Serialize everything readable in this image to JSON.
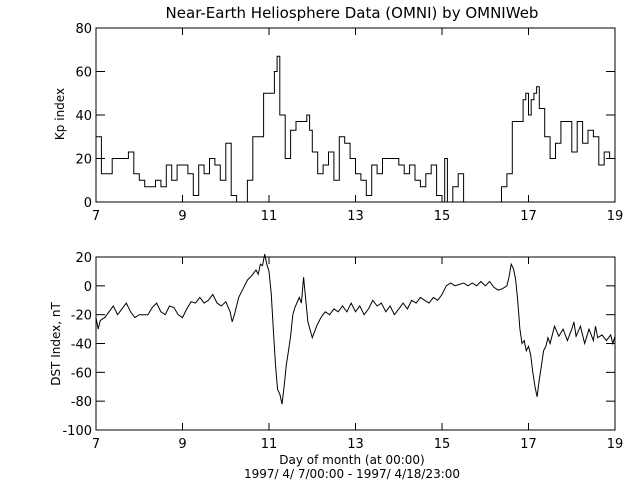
{
  "chart_data": {
    "title": "Near-Earth Heliosphere Data (OMNI) by OMNIWeb",
    "xlabel": "Day of month (at 00:00)",
    "date_range": "1997/ 4/ 7/00:00 - 1997/ 4/18/23:00",
    "panels": [
      {
        "type": "line",
        "step": true,
        "ylabel": "Kp index",
        "xlim": [
          7,
          19
        ],
        "ylim": [
          0,
          80
        ],
        "xticks": [
          7,
          9,
          11,
          13,
          15,
          17,
          19
        ],
        "yticks": [
          0,
          20,
          40,
          60,
          80
        ],
        "points": [
          [
            7.0,
            30
          ],
          [
            7.125,
            30
          ],
          [
            7.125,
            13
          ],
          [
            7.375,
            13
          ],
          [
            7.375,
            20
          ],
          [
            7.75,
            20
          ],
          [
            7.75,
            23
          ],
          [
            7.875,
            23
          ],
          [
            7.875,
            13
          ],
          [
            8.0,
            13
          ],
          [
            8.0,
            10
          ],
          [
            8.125,
            10
          ],
          [
            8.125,
            7
          ],
          [
            8.375,
            7
          ],
          [
            8.375,
            10
          ],
          [
            8.5,
            10
          ],
          [
            8.5,
            7
          ],
          [
            8.625,
            7
          ],
          [
            8.625,
            17
          ],
          [
            8.75,
            17
          ],
          [
            8.75,
            10
          ],
          [
            8.875,
            10
          ],
          [
            8.875,
            17
          ],
          [
            9.125,
            17
          ],
          [
            9.125,
            13
          ],
          [
            9.25,
            13
          ],
          [
            9.25,
            3
          ],
          [
            9.375,
            3
          ],
          [
            9.375,
            17
          ],
          [
            9.5,
            17
          ],
          [
            9.5,
            13
          ],
          [
            9.625,
            13
          ],
          [
            9.625,
            20
          ],
          [
            9.75,
            20
          ],
          [
            9.75,
            17
          ],
          [
            9.875,
            17
          ],
          [
            9.875,
            10
          ],
          [
            10.0,
            10
          ],
          [
            10.0,
            27
          ],
          [
            10.125,
            27
          ],
          [
            10.125,
            3
          ],
          [
            10.25,
            3
          ],
          [
            10.25,
            0
          ],
          [
            10.375,
            0
          ],
          [
            null,
            null
          ],
          [
            10.5,
            0
          ],
          [
            10.5,
            10
          ],
          [
            10.625,
            10
          ],
          [
            10.625,
            30
          ],
          [
            10.875,
            30
          ],
          [
            10.875,
            50
          ],
          [
            11.125,
            50
          ],
          [
            11.125,
            60
          ],
          [
            11.188,
            60
          ],
          [
            11.188,
            67
          ],
          [
            11.25,
            67
          ],
          [
            11.25,
            40
          ],
          [
            11.375,
            40
          ],
          [
            11.375,
            20
          ],
          [
            11.5,
            20
          ],
          [
            11.5,
            33
          ],
          [
            11.625,
            33
          ],
          [
            11.625,
            37
          ],
          [
            11.875,
            37
          ],
          [
            11.875,
            40
          ],
          [
            11.938,
            40
          ],
          [
            11.938,
            33
          ],
          [
            12.0,
            33
          ],
          [
            12.0,
            23
          ],
          [
            12.125,
            23
          ],
          [
            12.125,
            13
          ],
          [
            12.25,
            13
          ],
          [
            12.25,
            17
          ],
          [
            12.375,
            17
          ],
          [
            12.375,
            23
          ],
          [
            12.5,
            23
          ],
          [
            12.5,
            10
          ],
          [
            12.625,
            10
          ],
          [
            12.625,
            30
          ],
          [
            12.75,
            30
          ],
          [
            12.75,
            27
          ],
          [
            12.875,
            27
          ],
          [
            12.875,
            20
          ],
          [
            13.0,
            20
          ],
          [
            13.0,
            13
          ],
          [
            13.125,
            13
          ],
          [
            13.125,
            10
          ],
          [
            13.25,
            10
          ],
          [
            13.25,
            3
          ],
          [
            13.375,
            3
          ],
          [
            13.375,
            17
          ],
          [
            13.5,
            17
          ],
          [
            13.5,
            13
          ],
          [
            13.625,
            13
          ],
          [
            13.625,
            20
          ],
          [
            14.0,
            20
          ],
          [
            14.0,
            17
          ],
          [
            14.125,
            17
          ],
          [
            14.125,
            13
          ],
          [
            14.25,
            13
          ],
          [
            14.25,
            17
          ],
          [
            14.375,
            17
          ],
          [
            14.375,
            10
          ],
          [
            14.5,
            10
          ],
          [
            14.5,
            7
          ],
          [
            14.625,
            7
          ],
          [
            14.625,
            13
          ],
          [
            14.75,
            13
          ],
          [
            14.75,
            17
          ],
          [
            14.875,
            17
          ],
          [
            14.875,
            3
          ],
          [
            15.0,
            3
          ],
          [
            15.0,
            0
          ],
          [
            15.063,
            0
          ],
          [
            15.063,
            20
          ],
          [
            15.125,
            20
          ],
          [
            15.125,
            0
          ],
          [
            15.25,
            0
          ],
          [
            15.25,
            7
          ],
          [
            15.375,
            7
          ],
          [
            15.375,
            13
          ],
          [
            15.5,
            13
          ],
          [
            15.5,
            0
          ],
          [
            null,
            null
          ],
          [
            16.375,
            0
          ],
          [
            16.375,
            7
          ],
          [
            16.5,
            7
          ],
          [
            16.5,
            13
          ],
          [
            16.625,
            13
          ],
          [
            16.625,
            37
          ],
          [
            16.875,
            37
          ],
          [
            16.875,
            47
          ],
          [
            16.938,
            47
          ],
          [
            16.938,
            50
          ],
          [
            17.0,
            50
          ],
          [
            17.0,
            40
          ],
          [
            17.063,
            40
          ],
          [
            17.063,
            47
          ],
          [
            17.125,
            47
          ],
          [
            17.125,
            50
          ],
          [
            17.188,
            50
          ],
          [
            17.188,
            53
          ],
          [
            17.25,
            53
          ],
          [
            17.25,
            43
          ],
          [
            17.375,
            43
          ],
          [
            17.375,
            30
          ],
          [
            17.5,
            30
          ],
          [
            17.5,
            20
          ],
          [
            17.625,
            20
          ],
          [
            17.625,
            27
          ],
          [
            17.75,
            27
          ],
          [
            17.75,
            37
          ],
          [
            18.0,
            37
          ],
          [
            18.0,
            23
          ],
          [
            18.125,
            23
          ],
          [
            18.125,
            37
          ],
          [
            18.25,
            37
          ],
          [
            18.25,
            27
          ],
          [
            18.375,
            27
          ],
          [
            18.375,
            33
          ],
          [
            18.5,
            33
          ],
          [
            18.5,
            30
          ],
          [
            18.625,
            30
          ],
          [
            18.625,
            17
          ],
          [
            18.75,
            17
          ],
          [
            18.75,
            23
          ],
          [
            18.875,
            23
          ],
          [
            18.875,
            20
          ],
          [
            19.0,
            20
          ]
        ]
      },
      {
        "type": "line",
        "ylabel": "DST Index, nT",
        "xlim": [
          7,
          19
        ],
        "ylim": [
          -100,
          20
        ],
        "xticks": [
          7,
          9,
          11,
          13,
          15,
          17,
          19
        ],
        "yticks": [
          -100,
          -80,
          -60,
          -40,
          -20,
          0,
          20
        ],
        "points": [
          [
            7.0,
            -22
          ],
          [
            7.05,
            -30
          ],
          [
            7.1,
            -24
          ],
          [
            7.2,
            -22
          ],
          [
            7.3,
            -18
          ],
          [
            7.4,
            -14
          ],
          [
            7.5,
            -20
          ],
          [
            7.6,
            -16
          ],
          [
            7.7,
            -12
          ],
          [
            7.8,
            -18
          ],
          [
            7.9,
            -22
          ],
          [
            8.0,
            -20
          ],
          [
            8.2,
            -20
          ],
          [
            8.3,
            -15
          ],
          [
            8.4,
            -12
          ],
          [
            8.5,
            -18
          ],
          [
            8.6,
            -20
          ],
          [
            8.7,
            -14
          ],
          [
            8.8,
            -15
          ],
          [
            8.9,
            -20
          ],
          [
            9.0,
            -22
          ],
          [
            9.1,
            -16
          ],
          [
            9.2,
            -11
          ],
          [
            9.3,
            -12
          ],
          [
            9.4,
            -8
          ],
          [
            9.5,
            -12
          ],
          [
            9.6,
            -10
          ],
          [
            9.7,
            -6
          ],
          [
            9.8,
            -12
          ],
          [
            9.9,
            -14
          ],
          [
            10.0,
            -11
          ],
          [
            10.1,
            -18
          ],
          [
            10.15,
            -25
          ],
          [
            10.2,
            -20
          ],
          [
            10.3,
            -8
          ],
          [
            10.4,
            -2
          ],
          [
            10.5,
            4
          ],
          [
            10.6,
            7
          ],
          [
            10.7,
            11
          ],
          [
            10.75,
            8
          ],
          [
            10.8,
            15
          ],
          [
            10.85,
            14
          ],
          [
            10.9,
            22
          ],
          [
            10.95,
            15
          ],
          [
            11.0,
            10
          ],
          [
            11.05,
            -5
          ],
          [
            11.1,
            -30
          ],
          [
            11.15,
            -55
          ],
          [
            11.2,
            -72
          ],
          [
            11.25,
            -75
          ],
          [
            11.3,
            -82
          ],
          [
            11.35,
            -70
          ],
          [
            11.4,
            -55
          ],
          [
            11.45,
            -45
          ],
          [
            11.5,
            -35
          ],
          [
            11.55,
            -20
          ],
          [
            11.6,
            -15
          ],
          [
            11.7,
            -8
          ],
          [
            11.75,
            -12
          ],
          [
            11.8,
            6
          ],
          [
            11.85,
            -10
          ],
          [
            11.9,
            -25
          ],
          [
            12.0,
            -36
          ],
          [
            12.1,
            -28
          ],
          [
            12.2,
            -22
          ],
          [
            12.3,
            -18
          ],
          [
            12.4,
            -20
          ],
          [
            12.5,
            -16
          ],
          [
            12.6,
            -18
          ],
          [
            12.7,
            -14
          ],
          [
            12.8,
            -18
          ],
          [
            12.9,
            -12
          ],
          [
            13.0,
            -18
          ],
          [
            13.1,
            -14
          ],
          [
            13.2,
            -20
          ],
          [
            13.3,
            -16
          ],
          [
            13.4,
            -10
          ],
          [
            13.5,
            -14
          ],
          [
            13.6,
            -12
          ],
          [
            13.7,
            -18
          ],
          [
            13.8,
            -14
          ],
          [
            13.9,
            -20
          ],
          [
            14.0,
            -16
          ],
          [
            14.1,
            -12
          ],
          [
            14.2,
            -16
          ],
          [
            14.3,
            -10
          ],
          [
            14.4,
            -12
          ],
          [
            14.5,
            -8
          ],
          [
            14.6,
            -10
          ],
          [
            14.7,
            -12
          ],
          [
            14.8,
            -8
          ],
          [
            14.9,
            -10
          ],
          [
            15.0,
            -6
          ],
          [
            15.1,
            0
          ],
          [
            15.2,
            2
          ],
          [
            15.3,
            0
          ],
          [
            15.5,
            2
          ],
          [
            15.6,
            0
          ],
          [
            15.7,
            2
          ],
          [
            15.8,
            0
          ],
          [
            15.9,
            3
          ],
          [
            16.0,
            0
          ],
          [
            16.1,
            3
          ],
          [
            16.2,
            -1
          ],
          [
            16.3,
            -3
          ],
          [
            16.4,
            -2
          ],
          [
            16.5,
            0
          ],
          [
            16.55,
            6
          ],
          [
            16.6,
            15
          ],
          [
            16.65,
            12
          ],
          [
            16.7,
            5
          ],
          [
            16.75,
            -10
          ],
          [
            16.8,
            -30
          ],
          [
            16.85,
            -40
          ],
          [
            16.9,
            -38
          ],
          [
            16.95,
            -45
          ],
          [
            17.0,
            -42
          ],
          [
            17.05,
            -48
          ],
          [
            17.1,
            -60
          ],
          [
            17.15,
            -70
          ],
          [
            17.2,
            -77
          ],
          [
            17.25,
            -65
          ],
          [
            17.3,
            -55
          ],
          [
            17.35,
            -45
          ],
          [
            17.4,
            -42
          ],
          [
            17.45,
            -36
          ],
          [
            17.5,
            -40
          ],
          [
            17.6,
            -28
          ],
          [
            17.7,
            -35
          ],
          [
            17.8,
            -30
          ],
          [
            17.9,
            -38
          ],
          [
            18.0,
            -30
          ],
          [
            18.05,
            -25
          ],
          [
            18.1,
            -35
          ],
          [
            18.2,
            -28
          ],
          [
            18.3,
            -40
          ],
          [
            18.4,
            -30
          ],
          [
            18.5,
            -38
          ],
          [
            18.55,
            -28
          ],
          [
            18.6,
            -36
          ],
          [
            18.7,
            -34
          ],
          [
            18.8,
            -38
          ],
          [
            18.9,
            -34
          ],
          [
            18.95,
            -40
          ],
          [
            19.0,
            -35
          ]
        ]
      }
    ]
  }
}
